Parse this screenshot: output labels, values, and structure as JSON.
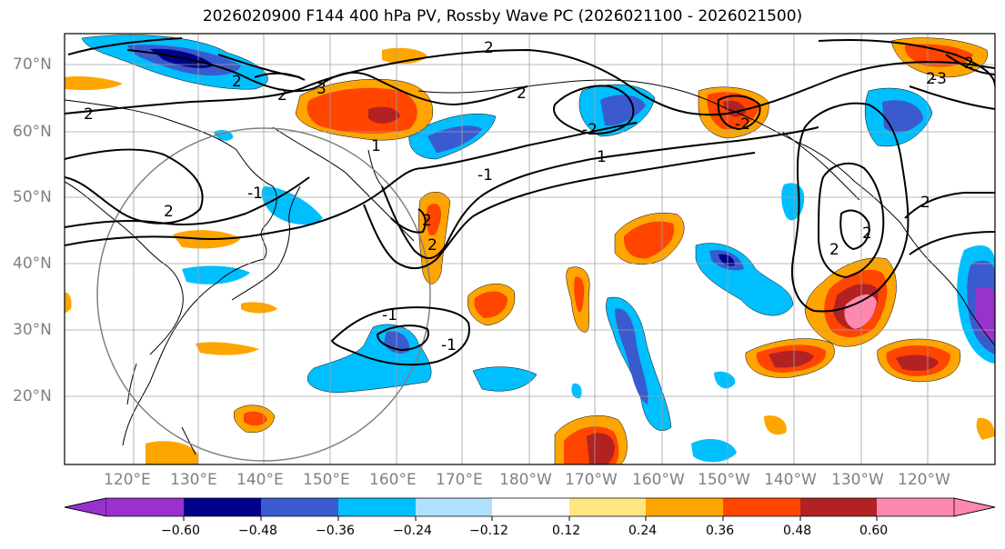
{
  "title": "2026020900 F144 400 hPa PV, Rossby Wave PC (2026021100 - 2026021500)",
  "map": {
    "region": "North Pacific",
    "lat_labels": [
      "70°N",
      "60°N",
      "50°N",
      "40°N",
      "30°N",
      "20°N"
    ],
    "lon_labels": [
      "120°E",
      "130°E",
      "140°E",
      "150°E",
      "160°E",
      "170°E",
      "180°W",
      "170°W",
      "160°W",
      "150°W",
      "140°W",
      "130°W",
      "120°W"
    ],
    "contour_labels": [
      "2",
      "2",
      "2",
      "3",
      "2",
      "-2",
      "2",
      "-2",
      "2",
      "2",
      "-1",
      "2",
      "2",
      "2",
      "-1",
      "-1",
      "1",
      "-1",
      "1",
      "2",
      "2",
      "2",
      "-3"
    ]
  },
  "colorbar": {
    "tick_labels": [
      "−0.60",
      "−0.48",
      "−0.36",
      "−0.24",
      "−0.12",
      "0.12",
      "0.24",
      "0.36",
      "0.48",
      "0.60"
    ],
    "colors": [
      "#9932cc",
      "#00008b",
      "#3a5bd0",
      "#00bfff",
      "#b0e0ff",
      "#ffffff",
      "#ffe680",
      "#ffa500",
      "#ff4500",
      "#b22222",
      "#ff88b0"
    ]
  }
}
